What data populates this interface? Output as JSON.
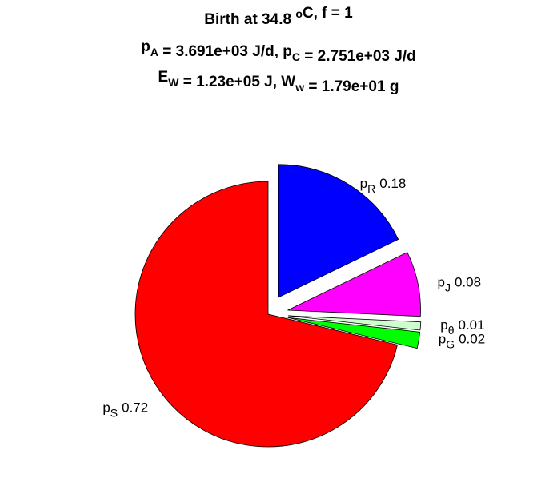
{
  "chart_data": {
    "type": "pie",
    "title": [
      [
        {
          "text": "Birth at 34.8 "
        },
        {
          "sup": "o"
        },
        {
          "text": "C, f = 1"
        }
      ],
      [
        {
          "text": "p"
        },
        {
          "sub": "A"
        },
        {
          "text": " = 3.691e+03 J/d, p"
        },
        {
          "sub": "C"
        },
        {
          "text": " = 2.751e+03 J/d"
        }
      ],
      [
        {
          "text": "E"
        },
        {
          "sub": "W"
        },
        {
          "text": " = 1.23e+05 J, W"
        },
        {
          "sub": "w"
        },
        {
          "text": " = 1.79e+01 g"
        }
      ]
    ],
    "categories": [
      {
        "text": "p",
        "sub": "S"
      },
      {
        "text": "p",
        "sub": "G"
      },
      {
        "text": "p",
        "sub": "θ"
      },
      {
        "text": "p",
        "sub": "J"
      },
      {
        "text": "p",
        "sub": "R"
      }
    ],
    "values": [
      0.72,
      0.02,
      0.01,
      0.08,
      0.18
    ],
    "colors": [
      "#ff0000",
      "#00ff00",
      "#ccffcc",
      "#ff00ff",
      "#0000ff"
    ],
    "explode": [
      0,
      1,
      1,
      1,
      1
    ]
  }
}
